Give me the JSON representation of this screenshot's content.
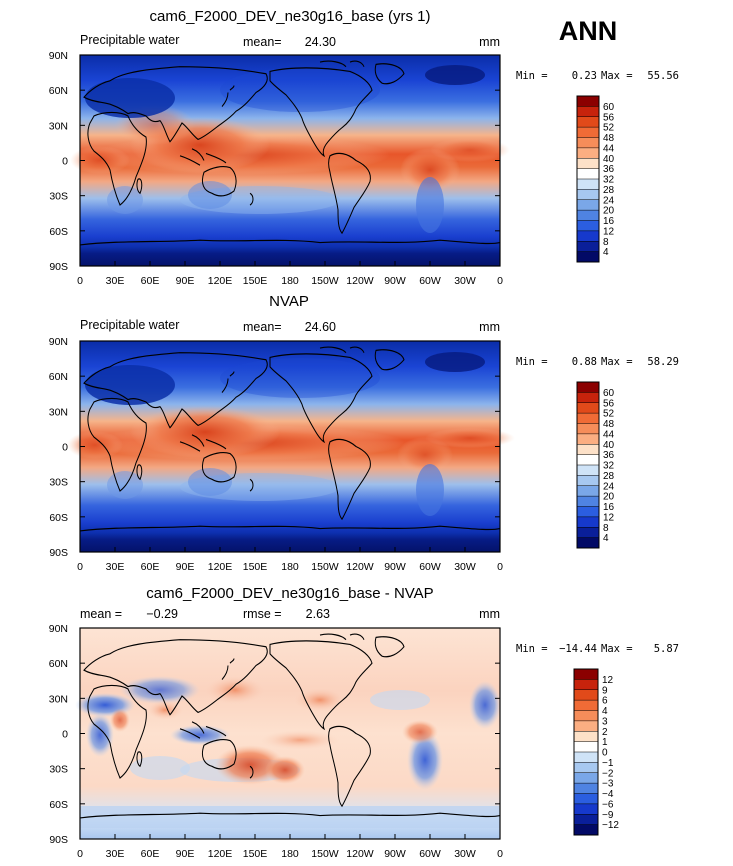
{
  "figure": {
    "season": "ANN",
    "units": "mm",
    "colors": {
      "land_outline": "#000000",
      "frame": "#000000"
    }
  },
  "chart_data": [
    {
      "type": "heatmap",
      "title": "cam6_F2000_DEV_ne30g16_base (yrs 1)",
      "variable": "Precipitable water",
      "stat1_label": "mean=",
      "stat1_value": "24.30",
      "units": "mm",
      "min_label": "Min =",
      "min_value": "0.23",
      "max_label": "Max =",
      "max_value": "55.56",
      "field": "model",
      "x_ticks": [
        "0",
        "30E",
        "60E",
        "90E",
        "120E",
        "150E",
        "180",
        "150W",
        "120W",
        "90W",
        "60W",
        "30W",
        "0"
      ],
      "y_ticks": [
        "90N",
        "60N",
        "30N",
        "0",
        "30S",
        "60S",
        "90S"
      ],
      "colorbar_levels": [
        "60",
        "56",
        "52",
        "48",
        "44",
        "40",
        "36",
        "32",
        "28",
        "24",
        "20",
        "16",
        "12",
        "8",
        "4"
      ],
      "colorbar_colors": [
        "#8b0000",
        "#c7230c",
        "#e14a1a",
        "#f06b36",
        "#f68d5a",
        "#fbae82",
        "#fde1c8",
        "#ffffff",
        "#cfe3f7",
        "#a7c8f0",
        "#7aa7e8",
        "#4f83e2",
        "#2b5ee0",
        "#1639cc",
        "#0a1f99",
        "#020a66"
      ]
    },
    {
      "type": "heatmap",
      "title": "NVAP",
      "variable": "Precipitable water",
      "stat1_label": "mean=",
      "stat1_value": "24.60",
      "units": "mm",
      "min_label": "Min =",
      "min_value": "0.88",
      "max_label": "Max =",
      "max_value": "58.29",
      "field": "obs",
      "x_ticks": [
        "0",
        "30E",
        "60E",
        "90E",
        "120E",
        "150E",
        "180",
        "150W",
        "120W",
        "90W",
        "60W",
        "30W",
        "0"
      ],
      "y_ticks": [
        "90N",
        "60N",
        "30N",
        "0",
        "30S",
        "60S",
        "90S"
      ],
      "colorbar_levels": [
        "60",
        "56",
        "52",
        "48",
        "44",
        "40",
        "36",
        "32",
        "28",
        "24",
        "20",
        "16",
        "12",
        "8",
        "4"
      ],
      "colorbar_colors": [
        "#8b0000",
        "#c7230c",
        "#e14a1a",
        "#f06b36",
        "#f68d5a",
        "#fbae82",
        "#fde1c8",
        "#ffffff",
        "#cfe3f7",
        "#a7c8f0",
        "#7aa7e8",
        "#4f83e2",
        "#2b5ee0",
        "#1639cc",
        "#0a1f99",
        "#020a66"
      ]
    },
    {
      "type": "heatmap",
      "title": "cam6_F2000_DEV_ne30g16_base - NVAP",
      "variable": "",
      "stat1_label": "mean =",
      "stat1_value": "−0.29",
      "stat2_label": "rmse =",
      "stat2_value": "2.63",
      "units": "mm",
      "min_label": "Min =",
      "min_value": "−14.44",
      "max_label": "Max =",
      "max_value": "5.87",
      "field": "diff",
      "x_ticks": [
        "0",
        "30E",
        "60E",
        "90E",
        "120E",
        "150E",
        "180",
        "150W",
        "120W",
        "90W",
        "60W",
        "30W",
        "0"
      ],
      "y_ticks": [
        "90N",
        "60N",
        "30N",
        "0",
        "30S",
        "60S",
        "90S"
      ],
      "colorbar_levels": [
        "12",
        "9",
        "6",
        "4",
        "3",
        "2",
        "1",
        "0",
        "−1",
        "−2",
        "−3",
        "−4",
        "−6",
        "−9",
        "−12"
      ],
      "colorbar_colors": [
        "#8b0000",
        "#c7230c",
        "#e14a1a",
        "#f06b36",
        "#f68d5a",
        "#fbae82",
        "#fde1c8",
        "#ffffff",
        "#cfe3f7",
        "#a7c8f0",
        "#7aa7e8",
        "#4f83e2",
        "#2b5ee0",
        "#1639cc",
        "#0a1f99",
        "#020a66"
      ]
    }
  ]
}
